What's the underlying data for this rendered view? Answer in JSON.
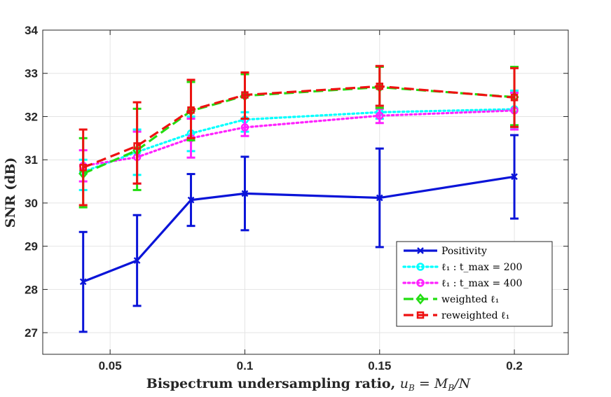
{
  "chart_data": {
    "type": "line",
    "xlabel": "Bispectrum undersampling ratio, u_B = M_B/N",
    "xlabel_parts": {
      "text": "Bispectrum undersampling ratio, ",
      "math": "u",
      "math_sub": "B",
      "math_rest": " = M",
      "math_sub2": "B",
      "math_end": "/N"
    },
    "ylabel": "SNR (dB)",
    "xlim": [
      0.025,
      0.22
    ],
    "ylim": [
      26.5,
      34
    ],
    "xticks": [
      0.05,
      0.1,
      0.15,
      0.2
    ],
    "xtick_labels": [
      "0.05",
      "0.1",
      "0.15",
      "0.2"
    ],
    "yticks": [
      27,
      28,
      29,
      30,
      31,
      32,
      33,
      34
    ],
    "ytick_labels": [
      "27",
      "28",
      "29",
      "30",
      "31",
      "32",
      "33",
      "34"
    ],
    "grid": true,
    "legend_position": "bottom-right",
    "x": [
      0.04,
      0.06,
      0.08,
      0.1,
      0.15,
      0.2
    ],
    "series": [
      {
        "name": "Positivity",
        "legend_label": "Positivity",
        "color": "#0a14d8",
        "dash": "solid",
        "marker": "x",
        "values": [
          28.18,
          28.67,
          30.07,
          30.22,
          30.12,
          30.61
        ],
        "err_low": [
          27.02,
          27.62,
          29.47,
          29.37,
          28.98,
          29.64
        ],
        "err_high": [
          29.33,
          29.72,
          30.67,
          31.07,
          31.26,
          31.57
        ]
      },
      {
        "name": "l1 : t_max = 200",
        "legend_label": "ℓ₁ : t_max = 200",
        "color": "#00ffff",
        "dash": "dotted",
        "marker": "circle",
        "values": [
          30.72,
          31.18,
          31.61,
          31.93,
          32.1,
          32.17
        ],
        "err_low": [
          30.3,
          30.65,
          31.2,
          31.65,
          31.95,
          31.75
        ],
        "err_high": [
          31.0,
          31.7,
          32.0,
          32.1,
          32.25,
          32.6
        ]
      },
      {
        "name": "l1 : t_max = 400",
        "legend_label": "ℓ₁ : t_max = 400",
        "color": "#ff22ff",
        "dash": "dotted",
        "marker": "circle",
        "values": [
          30.86,
          31.06,
          31.5,
          31.75,
          32.02,
          32.14
        ],
        "err_low": [
          30.5,
          30.45,
          31.05,
          31.55,
          31.85,
          31.7
        ],
        "err_high": [
          31.22,
          31.65,
          31.95,
          31.95,
          32.18,
          32.55
        ]
      },
      {
        "name": "weighted l1",
        "legend_label": "weighted ℓ₁",
        "color": "#22dd11",
        "dash": "dashed",
        "marker": "diamond",
        "values": [
          30.68,
          31.22,
          32.13,
          32.48,
          32.68,
          32.45
        ],
        "err_low": [
          29.9,
          30.3,
          31.45,
          31.95,
          32.2,
          31.8
        ],
        "err_high": [
          31.5,
          32.18,
          32.8,
          32.98,
          33.15,
          33.15
        ]
      },
      {
        "name": "reweighted l1",
        "legend_label": "reweighted ℓ₁",
        "color": "#ee1111",
        "dash": "dashed",
        "marker": "square",
        "values": [
          30.82,
          31.32,
          32.15,
          32.5,
          32.7,
          32.44
        ],
        "err_low": [
          29.95,
          30.45,
          31.5,
          31.95,
          32.25,
          31.76
        ],
        "err_high": [
          31.7,
          32.33,
          32.85,
          33.02,
          33.17,
          33.12
        ]
      }
    ]
  }
}
